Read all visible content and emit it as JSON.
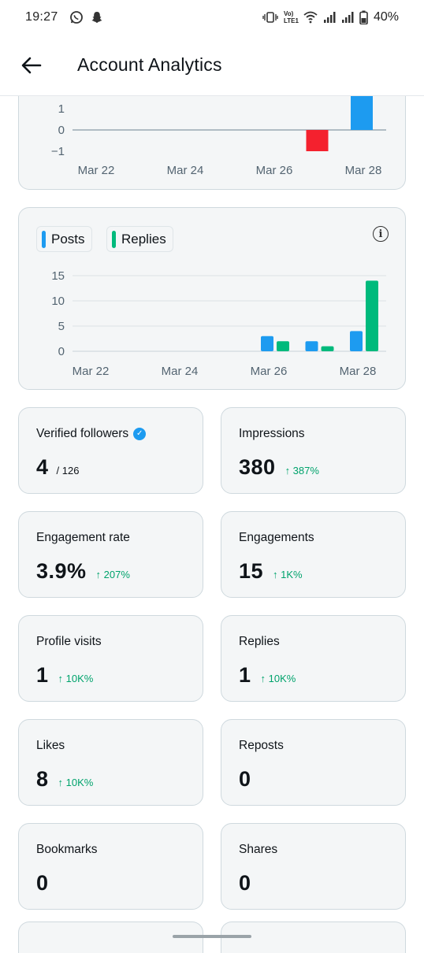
{
  "status_bar": {
    "time": "19:27",
    "battery": "40%",
    "net_label": "Vo) LTE1"
  },
  "header": {
    "title": "Account Analytics"
  },
  "chart_data": [
    {
      "type": "bar",
      "categories": [
        "Mar 22",
        "Mar 23",
        "Mar 24",
        "Mar 25",
        "Mar 26",
        "Mar 27",
        "Mar 28"
      ],
      "values": [
        0,
        0,
        0,
        0,
        0,
        -1,
        2
      ],
      "y_ticks": [
        "1",
        "0",
        "−1"
      ],
      "x_ticks": [
        "Mar 22",
        "Mar 24",
        "Mar 26",
        "Mar 28"
      ],
      "colors": {
        "positive": "#1d9bf0",
        "negative": "#f4212e"
      }
    },
    {
      "type": "bar",
      "categories": [
        "Mar 22",
        "Mar 23",
        "Mar 24",
        "Mar 25",
        "Mar 26",
        "Mar 27",
        "Mar 28"
      ],
      "series": [
        {
          "name": "Posts",
          "color": "#1d9bf0",
          "values": [
            0,
            0,
            0,
            0,
            3,
            2,
            4
          ]
        },
        {
          "name": "Replies",
          "color": "#00ba7c",
          "values": [
            0,
            0,
            0,
            0,
            2,
            1,
            14
          ]
        }
      ],
      "y_ticks": [
        "15",
        "10",
        "5",
        "0"
      ],
      "ylim": [
        0,
        15
      ],
      "x_ticks": [
        "Mar 22",
        "Mar 24",
        "Mar 26",
        "Mar 28"
      ],
      "legend": "top-left"
    }
  ],
  "legend": {
    "posts": "Posts",
    "replies": "Replies"
  },
  "stats": {
    "verified_followers": {
      "label": "Verified followers",
      "value": "4",
      "sub": "/ 126"
    },
    "impressions": {
      "label": "Impressions",
      "value": "380",
      "change": "↑ 387%"
    },
    "engagement_rate": {
      "label": "Engagement rate",
      "value": "3.9%",
      "change": "↑ 207%"
    },
    "engagements": {
      "label": "Engagements",
      "value": "15",
      "change": "↑ 1K%"
    },
    "profile_visits": {
      "label": "Profile visits",
      "value": "1",
      "change": "↑ 10K%"
    },
    "replies": {
      "label": "Replies",
      "value": "1",
      "change": "↑ 10K%"
    },
    "likes": {
      "label": "Likes",
      "value": "8",
      "change": "↑ 10K%"
    },
    "reposts": {
      "label": "Reposts",
      "value": "0"
    },
    "bookmarks": {
      "label": "Bookmarks",
      "value": "0"
    },
    "shares": {
      "label": "Shares",
      "value": "0"
    }
  },
  "icons": {
    "back": "arrow-left-icon",
    "info": "info-icon",
    "verified": "verified-badge-icon"
  }
}
